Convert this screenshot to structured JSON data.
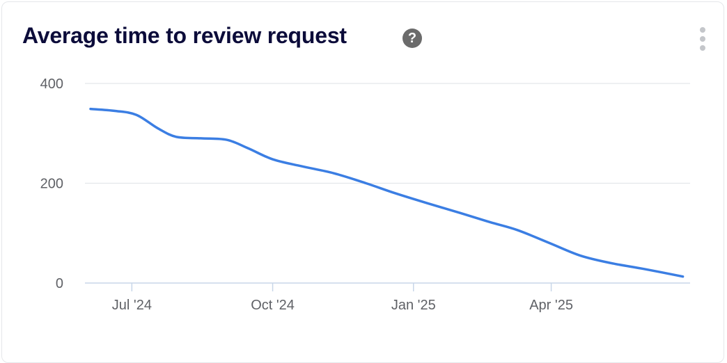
{
  "card": {
    "title": "Average time to review request",
    "help_icon": "question-circle-icon",
    "help_glyph": "?",
    "menu_icon": "vertical-dots-icon"
  },
  "colors": {
    "line": "#3b7ee3",
    "grid": "#e3e6ea",
    "axis": "#c8d6e8",
    "title": "#0c0c3a"
  },
  "chart_data": {
    "type": "line",
    "title": "Average time to review request",
    "xlabel": "",
    "ylabel": "",
    "ylim": [
      0,
      400
    ],
    "yticks": [
      400,
      200,
      0
    ],
    "xtick_labels": [
      "Jul '24",
      "Oct '24",
      "Jan '25",
      "Apr '25"
    ],
    "xtick_dates": [
      "2024-07-01",
      "2024-10-01",
      "2025-01-01",
      "2025-04-01"
    ],
    "xlim": [
      "2024-06-04",
      "2025-06-28"
    ],
    "grid": true,
    "series": [
      {
        "x": [
          "2024-06-04",
          "2024-06-20",
          "2024-07-04",
          "2024-07-18",
          "2024-07-30",
          "2024-08-15",
          "2024-09-01",
          "2024-09-15",
          "2024-10-01",
          "2024-10-20",
          "2024-11-10",
          "2024-12-01",
          "2024-12-20",
          "2025-01-10",
          "2025-02-01",
          "2025-02-20",
          "2025-03-10",
          "2025-03-31",
          "2025-04-20",
          "2025-05-10",
          "2025-06-01",
          "2025-06-26"
        ],
        "values": [
          349,
          345,
          337,
          310,
          293,
          290,
          287,
          270,
          248,
          234,
          220,
          200,
          180,
          160,
          140,
          122,
          106,
          80,
          55,
          40,
          28,
          13
        ]
      }
    ]
  }
}
